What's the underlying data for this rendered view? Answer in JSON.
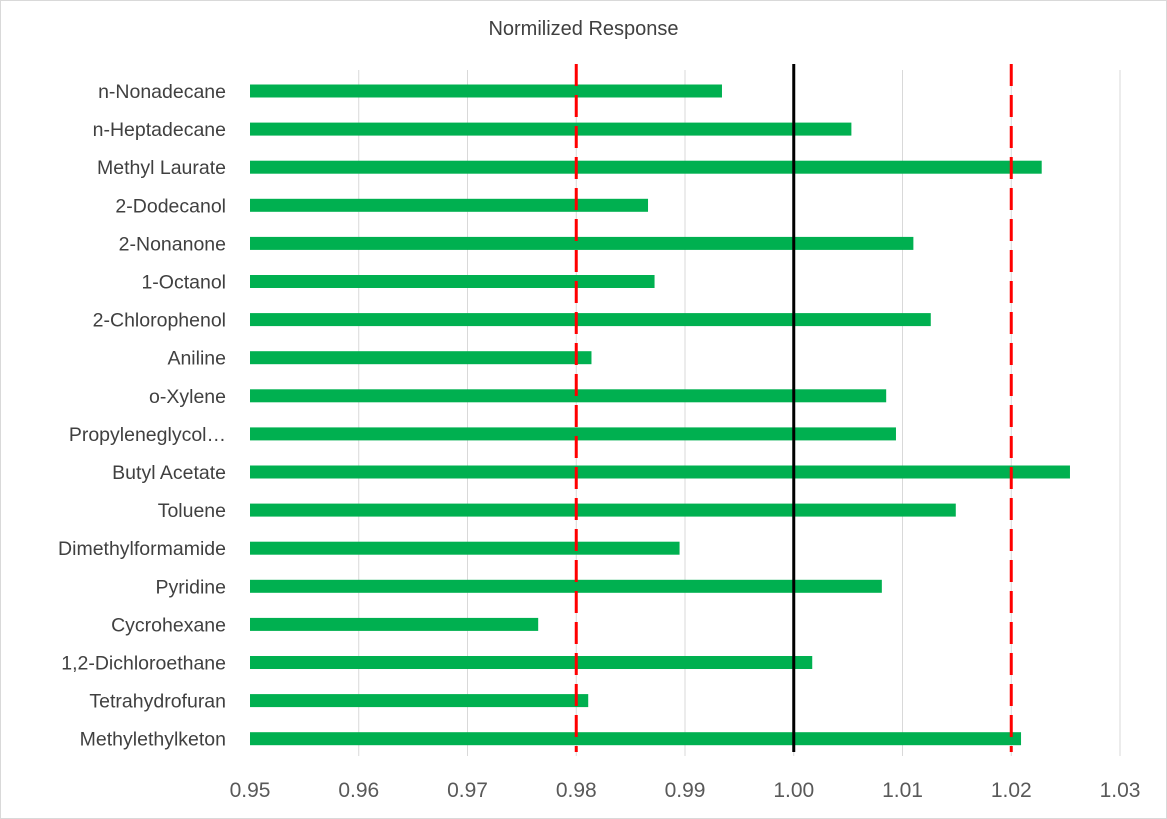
{
  "chart_data": {
    "type": "bar",
    "orientation": "horizontal",
    "title": "Normilized Response",
    "xlabel": "",
    "ylabel": "",
    "xlim": [
      0.95,
      1.03
    ],
    "x_ticks": [
      "0.95",
      "0.96",
      "0.97",
      "0.98",
      "0.99",
      "1.00",
      "1.01",
      "1.02",
      "1.03"
    ],
    "grid": "vertical",
    "categories": [
      "n-Nonadecane",
      "n-Heptadecane",
      "Methyl Laurate",
      "2-Dodecanol",
      "2-Nonanone",
      "1-Octanol",
      "2-Chlorophenol",
      "Aniline",
      "o-Xylene",
      "Propyleneglycol…",
      "Butyl Acetate",
      "Toluene",
      "Dimethylformamide",
      "Pyridine",
      "Cycrohexane",
      "1,2-Dichloroethane",
      "Tetrahydrofuran",
      "Methylethylketon"
    ],
    "values": [
      0.9934,
      1.0053,
      1.0228,
      0.9866,
      1.011,
      0.9872,
      1.0126,
      0.9814,
      1.0085,
      1.0094,
      1.0254,
      1.0149,
      0.9895,
      1.0081,
      0.9765,
      1.0017,
      0.9811,
      1.0209
    ],
    "reference_lines": [
      {
        "value": 0.98,
        "style": "dashed",
        "color": "#ff0000"
      },
      {
        "value": 1.0,
        "style": "solid",
        "color": "#000000"
      },
      {
        "value": 1.02,
        "style": "dashed",
        "color": "#ff0000"
      }
    ],
    "colors": {
      "bar": "#00b050",
      "grid": "#d9d9d9"
    }
  }
}
